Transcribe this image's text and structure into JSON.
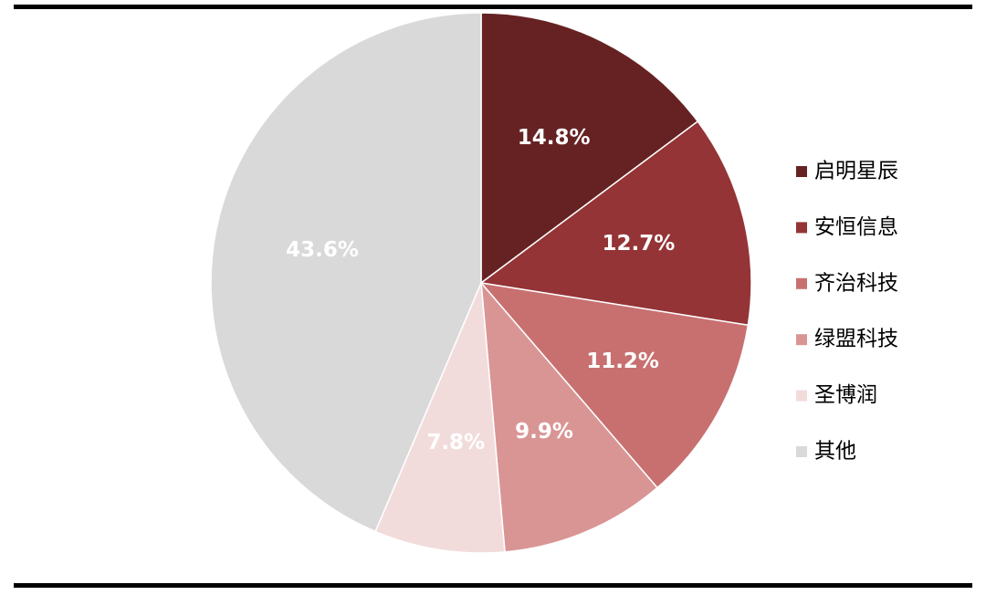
{
  "chart_data": {
    "type": "pie",
    "categories": [
      "启明星辰",
      "安恒信息",
      "齐治科技",
      "绿盟科技",
      "圣博润",
      "其他"
    ],
    "values": [
      14.8,
      12.7,
      11.2,
      9.9,
      7.8,
      43.6
    ],
    "value_labels": [
      "14.8%",
      "12.7%",
      "11.2%",
      "9.9%",
      "7.8%",
      "43.6%"
    ],
    "colors": [
      "#662222",
      "#943436",
      "#c87070",
      "#d99594",
      "#f2dcdb",
      "#d9d9d9"
    ]
  }
}
